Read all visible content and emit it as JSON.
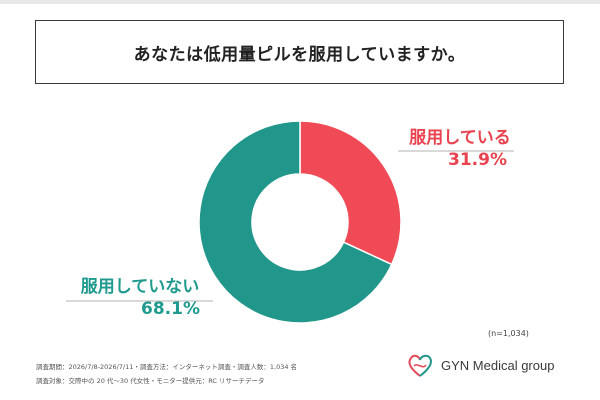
{
  "title": "あなたは低用量ピルを服用していますか。",
  "chart_data": {
    "type": "pie",
    "donut": true,
    "start": "top",
    "direction": "clockwise",
    "series": [
      {
        "name": "服用している",
        "value": 31.9,
        "label": "31.9%",
        "color": "#f04a56"
      },
      {
        "name": "服用していない",
        "value": 68.1,
        "label": "68.1%",
        "color": "#21968b"
      }
    ],
    "legend": "none"
  },
  "n_note": "(n=1,034)",
  "footer": {
    "line1": "調査期間：2026/7/8-2026/7/11・調査方法：インターネット調査・調査人数：1,034 名",
    "line2": "調査対象：交際中の 20 代〜30 代女性・モニター提供元：RC リサーチデータ"
  },
  "logo": {
    "text": "GYN Medical group"
  }
}
